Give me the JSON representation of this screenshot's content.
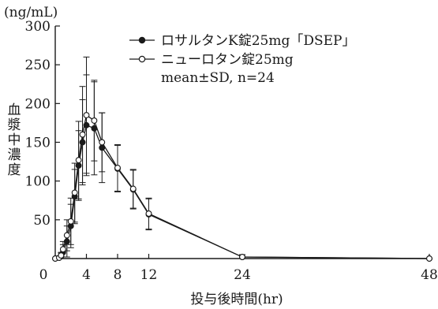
{
  "chart_data": {
    "type": "line",
    "title": "",
    "ylabel": "血漿中濃度",
    "yunit": "(ng/mL)",
    "xlabel": "投与後時間(hr)",
    "xlim": [
      0,
      48
    ],
    "ylim": [
      0,
      300
    ],
    "xticks": [
      0,
      4,
      8,
      12,
      24,
      48
    ],
    "yticks": [
      50,
      100,
      150,
      200,
      250,
      300
    ],
    "ytick_labels": [
      "50",
      "100",
      "150",
      "200",
      "250",
      "300"
    ],
    "grid": false,
    "legend_position": "top-right",
    "legend_note": "mean±SD, n=24",
    "series": [
      {
        "name": "ロサルタンK錠25mg「DSEP」",
        "marker": "filled-circle",
        "color": "#1a1a1a",
        "x": [
          0,
          0.5,
          0.75,
          1,
          1.5,
          2,
          2.5,
          3,
          3.5,
          4,
          5,
          6,
          8,
          10,
          12,
          24,
          48
        ],
        "y": [
          0,
          1,
          3,
          8,
          22,
          42,
          80,
          120,
          150,
          172,
          168,
          143,
          116,
          89,
          57,
          2,
          0
        ],
        "sd": [
          0,
          1,
          4,
          10,
          20,
          28,
          35,
          45,
          55,
          65,
          60,
          45,
          30,
          25,
          20,
          3,
          0
        ]
      },
      {
        "name": "ニューロタン錠25mg",
        "marker": "open-circle",
        "color": "#1a1a1a",
        "x": [
          0,
          0.5,
          0.75,
          1,
          1.5,
          2,
          2.5,
          3,
          3.5,
          4,
          5,
          6,
          8,
          10,
          12,
          24,
          48
        ],
        "y": [
          0,
          1,
          4,
          12,
          30,
          48,
          85,
          127,
          160,
          185,
          178,
          150,
          117,
          90,
          58,
          2,
          0
        ],
        "sd": [
          0,
          1,
          4,
          10,
          20,
          30,
          38,
          50,
          62,
          75,
          52,
          38,
          30,
          25,
          20,
          3,
          0
        ]
      }
    ]
  }
}
